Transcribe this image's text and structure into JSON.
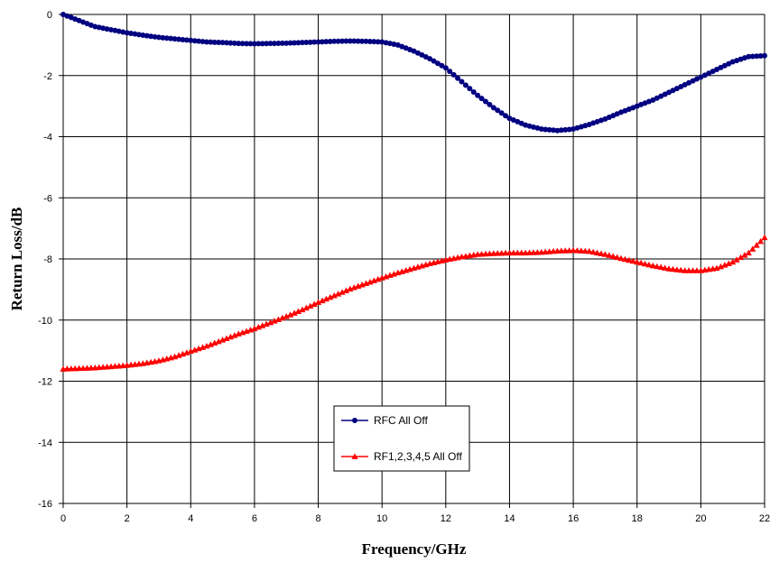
{
  "chart_data": {
    "type": "line",
    "title": "",
    "xlabel": "Frequency/GHz",
    "ylabel": "Return Loss/dB",
    "xlim": [
      0,
      22
    ],
    "ylim": [
      -16,
      0
    ],
    "xticks": [
      0,
      2,
      4,
      6,
      8,
      10,
      12,
      14,
      16,
      18,
      20,
      22
    ],
    "yticks": [
      0,
      -2,
      -4,
      -6,
      -8,
      -10,
      -12,
      -14,
      -16
    ],
    "grid": true,
    "legend_position": "bottom-center",
    "series": [
      {
        "name": "RFC All Off",
        "color": "#000080",
        "marker": "circle",
        "points": [
          [
            0,
            0
          ],
          [
            0.5,
            -0.2
          ],
          [
            1,
            -0.4
          ],
          [
            1.5,
            -0.5
          ],
          [
            2,
            -0.6
          ],
          [
            2.5,
            -0.68
          ],
          [
            3,
            -0.75
          ],
          [
            3.5,
            -0.8
          ],
          [
            4,
            -0.85
          ],
          [
            4.5,
            -0.9
          ],
          [
            5,
            -0.92
          ],
          [
            5.5,
            -0.95
          ],
          [
            6,
            -0.96
          ],
          [
            6.5,
            -0.95
          ],
          [
            7,
            -0.94
          ],
          [
            7.5,
            -0.92
          ],
          [
            8,
            -0.9
          ],
          [
            8.5,
            -0.88
          ],
          [
            9,
            -0.87
          ],
          [
            9.5,
            -0.88
          ],
          [
            10,
            -0.9
          ],
          [
            10.5,
            -1.0
          ],
          [
            11,
            -1.2
          ],
          [
            11.5,
            -1.45
          ],
          [
            12,
            -1.75
          ],
          [
            12.5,
            -2.2
          ],
          [
            13,
            -2.65
          ],
          [
            13.5,
            -3.05
          ],
          [
            14,
            -3.4
          ],
          [
            14.5,
            -3.62
          ],
          [
            15,
            -3.75
          ],
          [
            15.5,
            -3.8
          ],
          [
            16,
            -3.75
          ],
          [
            16.5,
            -3.6
          ],
          [
            17,
            -3.42
          ],
          [
            17.5,
            -3.2
          ],
          [
            18,
            -3.0
          ],
          [
            18.5,
            -2.8
          ],
          [
            19,
            -2.55
          ],
          [
            19.5,
            -2.3
          ],
          [
            20,
            -2.05
          ],
          [
            20.5,
            -1.8
          ],
          [
            21,
            -1.55
          ],
          [
            21.5,
            -1.38
          ],
          [
            22,
            -1.35
          ]
        ]
      },
      {
        "name": "RF1,2,3,4,5 All Off",
        "color": "#FF0000",
        "marker": "triangle",
        "points": [
          [
            0,
            -11.6
          ],
          [
            0.5,
            -11.58
          ],
          [
            1,
            -11.56
          ],
          [
            1.5,
            -11.52
          ],
          [
            2,
            -11.48
          ],
          [
            2.5,
            -11.42
          ],
          [
            3,
            -11.33
          ],
          [
            3.5,
            -11.2
          ],
          [
            4,
            -11.02
          ],
          [
            4.5,
            -10.85
          ],
          [
            5,
            -10.65
          ],
          [
            5.5,
            -10.45
          ],
          [
            6,
            -10.28
          ],
          [
            6.5,
            -10.08
          ],
          [
            7,
            -9.88
          ],
          [
            7.5,
            -9.66
          ],
          [
            8,
            -9.42
          ],
          [
            8.5,
            -9.2
          ],
          [
            9,
            -8.98
          ],
          [
            9.5,
            -8.8
          ],
          [
            10,
            -8.62
          ],
          [
            10.5,
            -8.45
          ],
          [
            11,
            -8.3
          ],
          [
            11.5,
            -8.15
          ],
          [
            12,
            -8.03
          ],
          [
            12.5,
            -7.93
          ],
          [
            13,
            -7.85
          ],
          [
            13.5,
            -7.82
          ],
          [
            14,
            -7.8
          ],
          [
            14.5,
            -7.8
          ],
          [
            15,
            -7.78
          ],
          [
            15.5,
            -7.74
          ],
          [
            16,
            -7.72
          ],
          [
            16.5,
            -7.75
          ],
          [
            17,
            -7.85
          ],
          [
            17.5,
            -7.98
          ],
          [
            18,
            -8.1
          ],
          [
            18.5,
            -8.22
          ],
          [
            19,
            -8.32
          ],
          [
            19.5,
            -8.38
          ],
          [
            20,
            -8.38
          ],
          [
            20.5,
            -8.3
          ],
          [
            21,
            -8.1
          ],
          [
            21.5,
            -7.8
          ],
          [
            22,
            -7.3
          ]
        ]
      }
    ]
  }
}
